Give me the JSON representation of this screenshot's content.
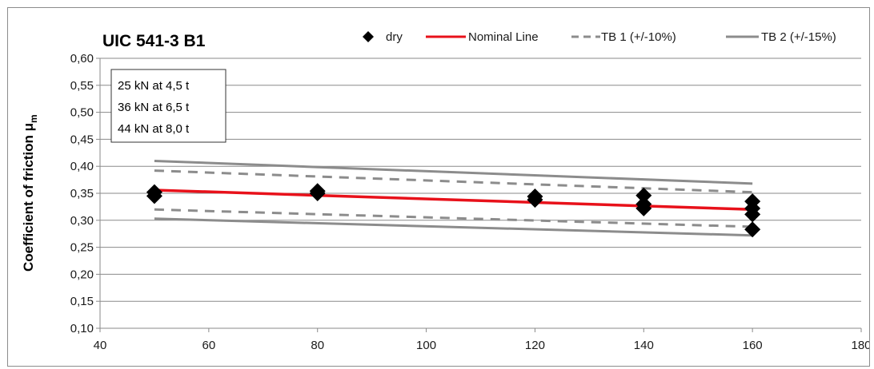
{
  "chart_data": {
    "type": "scatter",
    "title": "UIC 541-3 B1",
    "ylabel": "Coefficient of friction μ",
    "ylabel_sub": "m",
    "xlabel": "",
    "xlim": [
      40,
      180
    ],
    "ylim": [
      0.1,
      0.6
    ],
    "x_ticks": [
      40,
      60,
      80,
      100,
      120,
      140,
      160,
      180
    ],
    "x_tick_labels": [
      "40",
      "60",
      "80",
      "100",
      "120",
      "140",
      "160",
      "180"
    ],
    "y_ticks": [
      0.1,
      0.15,
      0.2,
      0.25,
      0.3,
      0.35,
      0.4,
      0.45,
      0.5,
      0.55,
      0.6
    ],
    "y_tick_labels": [
      "0,10",
      "0,15",
      "0,20",
      "0,25",
      "0,30",
      "0,35",
      "0,40",
      "0,45",
      "0,50",
      "0,55",
      "0,60"
    ],
    "grid": "horizontal",
    "legend_position": "top",
    "annotation_lines": [
      "25 kN at 4,5 t",
      "36 kN at 6,5 t",
      "44 kN at 8,0 t"
    ],
    "series": [
      {
        "name": "dry",
        "kind": "points",
        "marker": "diamond",
        "color": "#000000",
        "points": [
          [
            50,
            0.345
          ],
          [
            50,
            0.352
          ],
          [
            80,
            0.35
          ],
          [
            80,
            0.354
          ],
          [
            120,
            0.338
          ],
          [
            120,
            0.344
          ],
          [
            140,
            0.322
          ],
          [
            140,
            0.33
          ],
          [
            140,
            0.346
          ],
          [
            160,
            0.283
          ],
          [
            160,
            0.311
          ],
          [
            160,
            0.322
          ],
          [
            160,
            0.335
          ]
        ]
      },
      {
        "name": "Nominal Line",
        "kind": "line",
        "style": "solid",
        "color": "#e8111a",
        "points": [
          [
            50,
            0.356
          ],
          [
            160,
            0.32
          ]
        ]
      },
      {
        "name": "TB 1 (+/-10%)",
        "kind": "line",
        "style": "dashed",
        "color": "#8c8c8c",
        "points": [
          [
            50,
            0.392
          ],
          [
            160,
            0.352
          ]
        ],
        "lower_points": [
          [
            50,
            0.32
          ],
          [
            160,
            0.288
          ]
        ]
      },
      {
        "name": "TB 2 (+/-15%)",
        "kind": "line",
        "style": "solid",
        "color": "#8c8c8c",
        "points": [
          [
            50,
            0.41
          ],
          [
            160,
            0.368
          ]
        ],
        "lower_points": [
          [
            50,
            0.303
          ],
          [
            160,
            0.272
          ]
        ]
      }
    ]
  }
}
